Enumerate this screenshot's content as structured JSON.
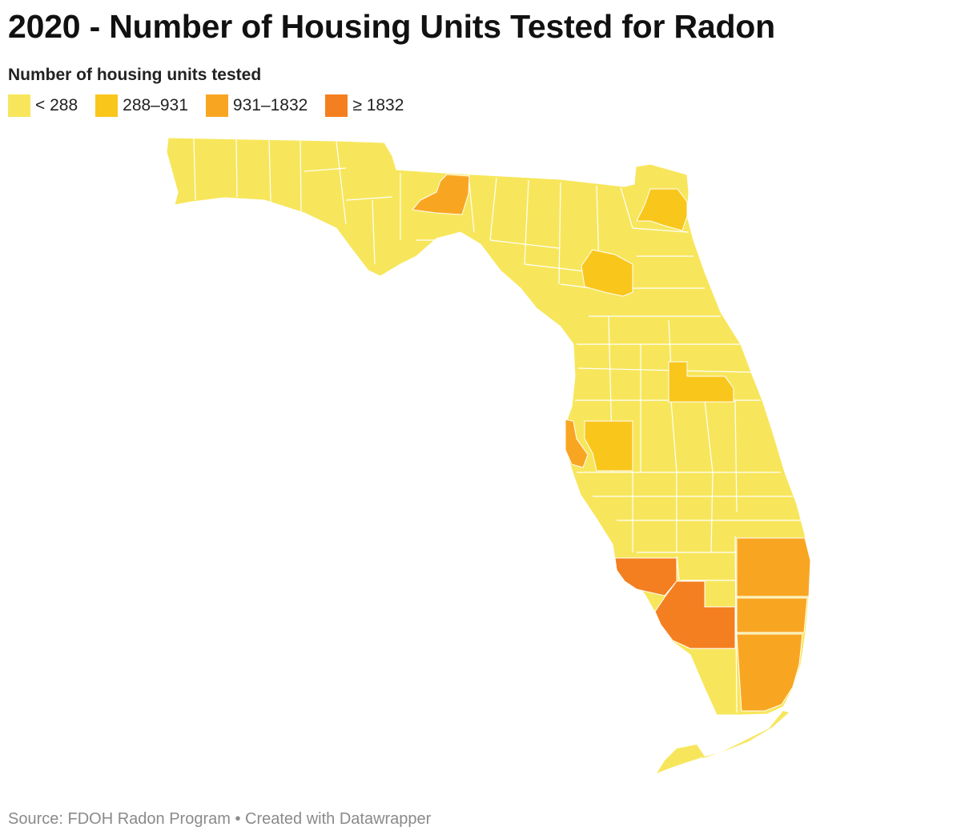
{
  "header": {
    "title": "2020 - Number of Housing Units Tested for Radon"
  },
  "legend": {
    "title": "Number of housing units tested",
    "items": [
      {
        "label": "< 288",
        "color": "#f7e65b"
      },
      {
        "label": "288–931",
        "color": "#f9c61c"
      },
      {
        "label": "931–1832",
        "color": "#f8a622"
      },
      {
        "label": "≥ 1832",
        "color": "#f47f20"
      }
    ]
  },
  "map": {
    "region": "Florida",
    "base_color": "#f7e65b",
    "border_color": "#ffffff"
  },
  "footer": {
    "source": "Source: FDOH Radon Program • Created with Datawrapper"
  }
}
